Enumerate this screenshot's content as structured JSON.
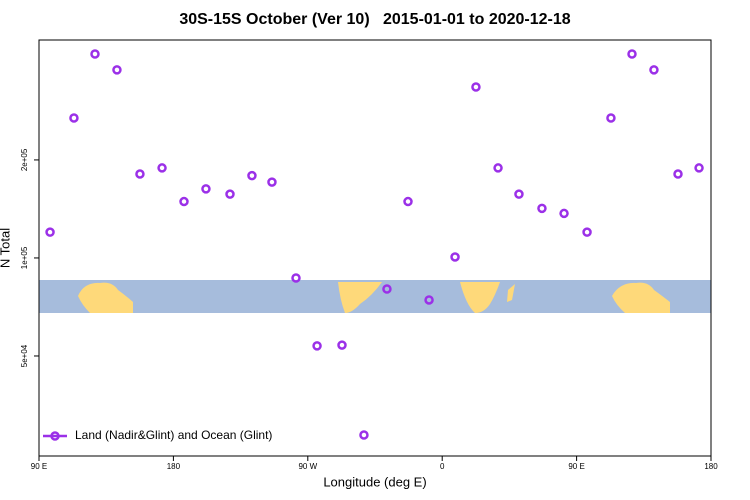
{
  "chart_data": {
    "type": "scatter",
    "title": "30S-15S October (Ver 10)   2015-01-01 to 2020-12-18",
    "xlabel": "Longitude (deg E)",
    "ylabel": "N Total",
    "x": [
      97.4,
      113.4,
      127.5,
      142.2,
      157.6,
      172.4,
      187.1,
      201.8,
      217.9,
      232.6,
      246.0,
      262.1,
      276.2,
      292.9,
      307.6,
      323.0,
      337.1,
      351.2,
      368.6,
      382.6,
      397.4,
      411.4,
      426.8,
      441.6,
      457.0,
      473.0,
      487.1,
      501.8,
      517.9,
      532.0
    ],
    "series": [
      {
        "name": "Land (Nadir&Glint) and Ocean (Glint)",
        "color": "#9b30e8",
        "values": [
          120000,
          269000,
          423000,
          378000,
          181000,
          189000,
          149000,
          163000,
          157000,
          179000,
          171000,
          86800,
          53700,
          54000,
          28600,
          80300,
          149000,
          74300,
          100700,
          335000,
          189000,
          157000,
          142000,
          137000,
          120000,
          269000,
          423000,
          378000,
          181000,
          189000
        ]
      }
    ],
    "xlim": [
      90,
      540
    ],
    "xticks": [
      {
        "value": 90,
        "label": "90 E"
      },
      180,
      {
        "value": 270,
        "label": "90 W"
      },
      {
        "value": 360,
        "label": "0"
      },
      {
        "value": 450,
        "label": "90 E"
      },
      {
        "value": 540,
        "label": "180"
      }
    ],
    "ylim": [
      24650,
      467000
    ],
    "yticks": [
      {
        "value": 50000,
        "label": "5e+04"
      },
      {
        "value": 100000,
        "label": "1e+05"
      },
      {
        "value": 200000,
        "label": "2e+05"
      }
    ],
    "log_y": true,
    "grid": false,
    "legend": "lower left"
  }
}
